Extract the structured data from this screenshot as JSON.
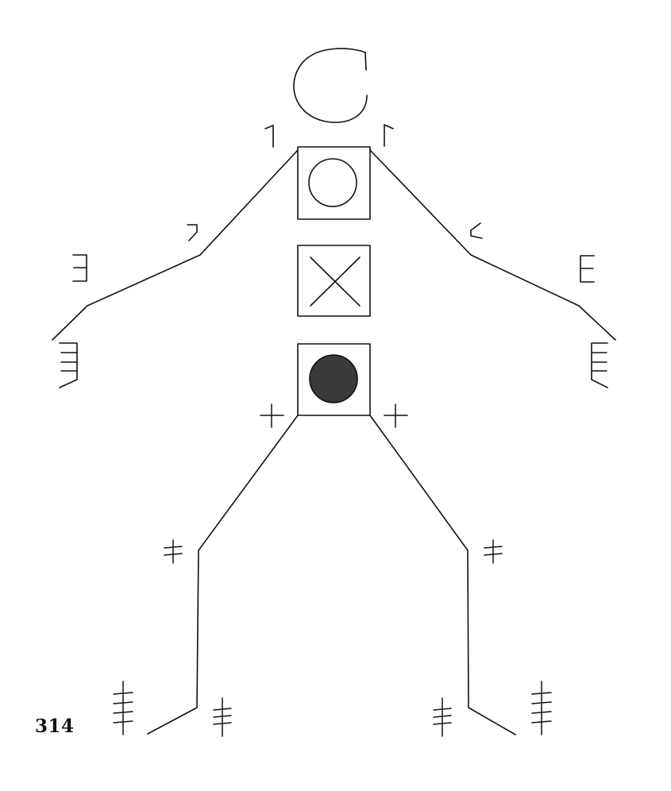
{
  "page": {
    "page_number": "314"
  },
  "figure": {
    "ink_color": "#111111",
    "fill_color": "#3a3a3a",
    "background": "#ffffff",
    "icons": {
      "head": "open-circle-icon",
      "chest": "circle-in-square-icon",
      "belly": "x-in-square-icon",
      "pelvis": "filled-circle-in-square-icon"
    }
  }
}
